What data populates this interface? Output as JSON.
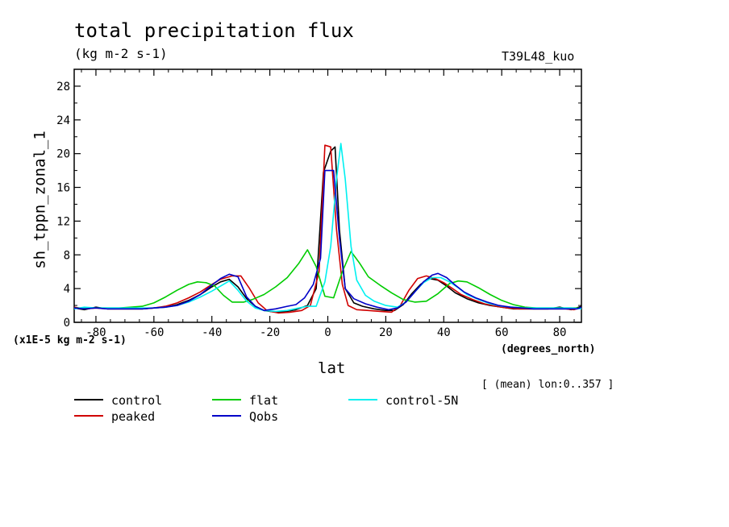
{
  "header": {
    "title": "total precipitation flux",
    "units": "(kg m-2 s-1)",
    "run_label": "T39L48_kuo",
    "x_units": "(degrees_north)",
    "y_scale": "(x1E-5 kg m-2 s-1)",
    "note": "[ (mean) lon:0..357 ]"
  },
  "chart_data": {
    "type": "line",
    "xlabel": "lat",
    "ylabel": "sh_tppn_zonal_1",
    "xlim": [
      -87.5,
      87.5
    ],
    "ylim": [
      0,
      30
    ],
    "xticks": [
      -80,
      -60,
      -40,
      -20,
      0,
      20,
      40,
      60,
      80
    ],
    "xtick_labels": [
      "-80",
      "-60",
      "-40",
      "-20",
      "0",
      "20",
      "40",
      "60",
      "80"
    ],
    "yticks": [
      0,
      4,
      8,
      12,
      16,
      20,
      24,
      28
    ],
    "ytick_labels": [
      "0",
      "4",
      "8",
      "12",
      "16",
      "20",
      "24",
      "28"
    ],
    "grid": false,
    "legend_position": "bottom",
    "series": [
      {
        "name": "control",
        "color": "#000000",
        "points": [
          [
            -87.5,
            1.7
          ],
          [
            -84,
            1.5
          ],
          [
            -80,
            1.8
          ],
          [
            -76,
            1.6
          ],
          [
            -72,
            1.6
          ],
          [
            -68,
            1.6
          ],
          [
            -64,
            1.6
          ],
          [
            -60,
            1.7
          ],
          [
            -56,
            1.8
          ],
          [
            -52,
            2.1
          ],
          [
            -48,
            2.6
          ],
          [
            -44,
            3.3
          ],
          [
            -40,
            4.2
          ],
          [
            -37,
            4.8
          ],
          [
            -34,
            5.1
          ],
          [
            -31,
            4.2
          ],
          [
            -28,
            2.8
          ],
          [
            -25,
            1.9
          ],
          [
            -22,
            1.4
          ],
          [
            -18,
            1.2
          ],
          [
            -14,
            1.3
          ],
          [
            -11,
            1.5
          ],
          [
            -7,
            2.0
          ],
          [
            -4,
            4.0
          ],
          [
            -1.5,
            17.8
          ],
          [
            1,
            20.3
          ],
          [
            2.5,
            20.8
          ],
          [
            4,
            11.0
          ],
          [
            6,
            4.0
          ],
          [
            9,
            2.3
          ],
          [
            12,
            1.9
          ],
          [
            16,
            1.6
          ],
          [
            20,
            1.4
          ],
          [
            23,
            1.4
          ],
          [
            26,
            2.1
          ],
          [
            29,
            3.4
          ],
          [
            32,
            4.5
          ],
          [
            35,
            5.2
          ],
          [
            38,
            5.0
          ],
          [
            41,
            4.3
          ],
          [
            44,
            3.5
          ],
          [
            48,
            2.8
          ],
          [
            52,
            2.3
          ],
          [
            56,
            2.0
          ],
          [
            60,
            1.8
          ],
          [
            64,
            1.6
          ],
          [
            68,
            1.6
          ],
          [
            72,
            1.6
          ],
          [
            76,
            1.6
          ],
          [
            80,
            1.8
          ],
          [
            84,
            1.5
          ],
          [
            87.5,
            1.9
          ]
        ]
      },
      {
        "name": "peaked",
        "color": "#d00000",
        "points": [
          [
            -87.5,
            1.8
          ],
          [
            -84,
            1.6
          ],
          [
            -80,
            1.7
          ],
          [
            -76,
            1.6
          ],
          [
            -72,
            1.6
          ],
          [
            -68,
            1.6
          ],
          [
            -64,
            1.6
          ],
          [
            -60,
            1.7
          ],
          [
            -56,
            1.9
          ],
          [
            -52,
            2.3
          ],
          [
            -48,
            2.9
          ],
          [
            -44,
            3.6
          ],
          [
            -40,
            4.5
          ],
          [
            -37,
            5.1
          ],
          [
            -33,
            5.5
          ],
          [
            -30,
            5.5
          ],
          [
            -27,
            4.0
          ],
          [
            -24,
            2.3
          ],
          [
            -21,
            1.4
          ],
          [
            -17,
            1.1
          ],
          [
            -13,
            1.2
          ],
          [
            -9,
            1.4
          ],
          [
            -6,
            2.0
          ],
          [
            -3,
            6.0
          ],
          [
            -1,
            21.0
          ],
          [
            1,
            20.8
          ],
          [
            3,
            11.0
          ],
          [
            5,
            4.5
          ],
          [
            7,
            2.0
          ],
          [
            10,
            1.5
          ],
          [
            14,
            1.4
          ],
          [
            18,
            1.3
          ],
          [
            22,
            1.2
          ],
          [
            25,
            2.0
          ],
          [
            28,
            3.8
          ],
          [
            31,
            5.2
          ],
          [
            34,
            5.5
          ],
          [
            37,
            5.2
          ],
          [
            40,
            4.7
          ],
          [
            43,
            4.0
          ],
          [
            46,
            3.3
          ],
          [
            50,
            2.7
          ],
          [
            54,
            2.2
          ],
          [
            58,
            1.9
          ],
          [
            62,
            1.7
          ],
          [
            66,
            1.6
          ],
          [
            70,
            1.6
          ],
          [
            74,
            1.6
          ],
          [
            78,
            1.6
          ],
          [
            82,
            1.6
          ],
          [
            85,
            1.5
          ],
          [
            87.5,
            1.8
          ]
        ]
      },
      {
        "name": "flat",
        "color": "#00cc00",
        "points": [
          [
            -87.5,
            1.7
          ],
          [
            -84,
            1.7
          ],
          [
            -80,
            1.7
          ],
          [
            -76,
            1.7
          ],
          [
            -72,
            1.7
          ],
          [
            -68,
            1.8
          ],
          [
            -64,
            1.9
          ],
          [
            -60,
            2.3
          ],
          [
            -56,
            3.0
          ],
          [
            -52,
            3.8
          ],
          [
            -48,
            4.5
          ],
          [
            -45,
            4.8
          ],
          [
            -42,
            4.7
          ],
          [
            -39,
            4.3
          ],
          [
            -36,
            3.2
          ],
          [
            -33,
            2.4
          ],
          [
            -29,
            2.4
          ],
          [
            -26,
            2.7
          ],
          [
            -22,
            3.3
          ],
          [
            -18,
            4.2
          ],
          [
            -14,
            5.3
          ],
          [
            -10,
            7.0
          ],
          [
            -7,
            8.6
          ],
          [
            -4,
            6.6
          ],
          [
            -1,
            3.1
          ],
          [
            2,
            2.9
          ],
          [
            5,
            6.0
          ],
          [
            8,
            8.4
          ],
          [
            11,
            7.0
          ],
          [
            14,
            5.4
          ],
          [
            18,
            4.4
          ],
          [
            22,
            3.5
          ],
          [
            26,
            2.7
          ],
          [
            30,
            2.4
          ],
          [
            34,
            2.5
          ],
          [
            38,
            3.4
          ],
          [
            42,
            4.6
          ],
          [
            45,
            4.9
          ],
          [
            48,
            4.8
          ],
          [
            52,
            4.1
          ],
          [
            56,
            3.3
          ],
          [
            60,
            2.6
          ],
          [
            64,
            2.1
          ],
          [
            68,
            1.8
          ],
          [
            72,
            1.7
          ],
          [
            76,
            1.7
          ],
          [
            80,
            1.7
          ],
          [
            84,
            1.7
          ],
          [
            87.5,
            1.7
          ]
        ]
      },
      {
        "name": "control-5N",
        "color": "#00f0f0",
        "points": [
          [
            -87.5,
            1.6
          ],
          [
            -84,
            1.8
          ],
          [
            -80,
            1.7
          ],
          [
            -76,
            1.7
          ],
          [
            -72,
            1.7
          ],
          [
            -68,
            1.7
          ],
          [
            -64,
            1.7
          ],
          [
            -60,
            1.7
          ],
          [
            -56,
            1.8
          ],
          [
            -52,
            2.0
          ],
          [
            -48,
            2.4
          ],
          [
            -44,
            3.0
          ],
          [
            -40,
            3.7
          ],
          [
            -37,
            4.3
          ],
          [
            -34,
            4.9
          ],
          [
            -31,
            3.8
          ],
          [
            -28,
            2.5
          ],
          [
            -25,
            1.7
          ],
          [
            -22,
            1.4
          ],
          [
            -18,
            1.3
          ],
          [
            -14,
            1.4
          ],
          [
            -10,
            1.7
          ],
          [
            -7,
            1.9
          ],
          [
            -4,
            1.9
          ],
          [
            -1,
            4.8
          ],
          [
            1,
            9.0
          ],
          [
            3,
            17.0
          ],
          [
            4.5,
            21.2
          ],
          [
            6,
            17.0
          ],
          [
            8,
            9.0
          ],
          [
            10,
            5.0
          ],
          [
            13,
            3.2
          ],
          [
            16,
            2.5
          ],
          [
            20,
            2.0
          ],
          [
            24,
            1.8
          ],
          [
            27,
            2.4
          ],
          [
            30,
            3.6
          ],
          [
            33,
            4.7
          ],
          [
            36,
            5.3
          ],
          [
            39,
            5.3
          ],
          [
            42,
            4.8
          ],
          [
            45,
            4.1
          ],
          [
            48,
            3.3
          ],
          [
            52,
            2.7
          ],
          [
            56,
            2.2
          ],
          [
            60,
            1.9
          ],
          [
            64,
            1.8
          ],
          [
            68,
            1.7
          ],
          [
            72,
            1.7
          ],
          [
            76,
            1.7
          ],
          [
            80,
            1.7
          ],
          [
            84,
            1.7
          ],
          [
            87.5,
            1.6
          ]
        ]
      },
      {
        "name": "Qobs",
        "color": "#0000c8",
        "points": [
          [
            -87.5,
            1.7
          ],
          [
            -84,
            1.6
          ],
          [
            -80,
            1.7
          ],
          [
            -76,
            1.6
          ],
          [
            -72,
            1.6
          ],
          [
            -68,
            1.6
          ],
          [
            -64,
            1.6
          ],
          [
            -60,
            1.7
          ],
          [
            -56,
            1.8
          ],
          [
            -52,
            2.0
          ],
          [
            -48,
            2.5
          ],
          [
            -44,
            3.3
          ],
          [
            -40,
            4.4
          ],
          [
            -37,
            5.2
          ],
          [
            -34,
            5.7
          ],
          [
            -31,
            5.4
          ],
          [
            -28,
            3.0
          ],
          [
            -25,
            1.9
          ],
          [
            -22,
            1.4
          ],
          [
            -18,
            1.6
          ],
          [
            -14,
            1.9
          ],
          [
            -11,
            2.1
          ],
          [
            -8,
            2.9
          ],
          [
            -5,
            4.5
          ],
          [
            -2.5,
            7.6
          ],
          [
            -1,
            18.0
          ],
          [
            2,
            18.0
          ],
          [
            4,
            10.0
          ],
          [
            6,
            4.0
          ],
          [
            9,
            2.8
          ],
          [
            13,
            2.2
          ],
          [
            17,
            1.8
          ],
          [
            21,
            1.5
          ],
          [
            24,
            1.7
          ],
          [
            27,
            2.4
          ],
          [
            30,
            3.6
          ],
          [
            33,
            4.8
          ],
          [
            36,
            5.6
          ],
          [
            38,
            5.8
          ],
          [
            41,
            5.3
          ],
          [
            44,
            4.4
          ],
          [
            47,
            3.6
          ],
          [
            51,
            2.9
          ],
          [
            55,
            2.4
          ],
          [
            59,
            2.0
          ],
          [
            63,
            1.8
          ],
          [
            67,
            1.7
          ],
          [
            71,
            1.6
          ],
          [
            75,
            1.6
          ],
          [
            79,
            1.6
          ],
          [
            83,
            1.6
          ],
          [
            86,
            1.6
          ],
          [
            87.5,
            1.8
          ]
        ]
      }
    ]
  }
}
